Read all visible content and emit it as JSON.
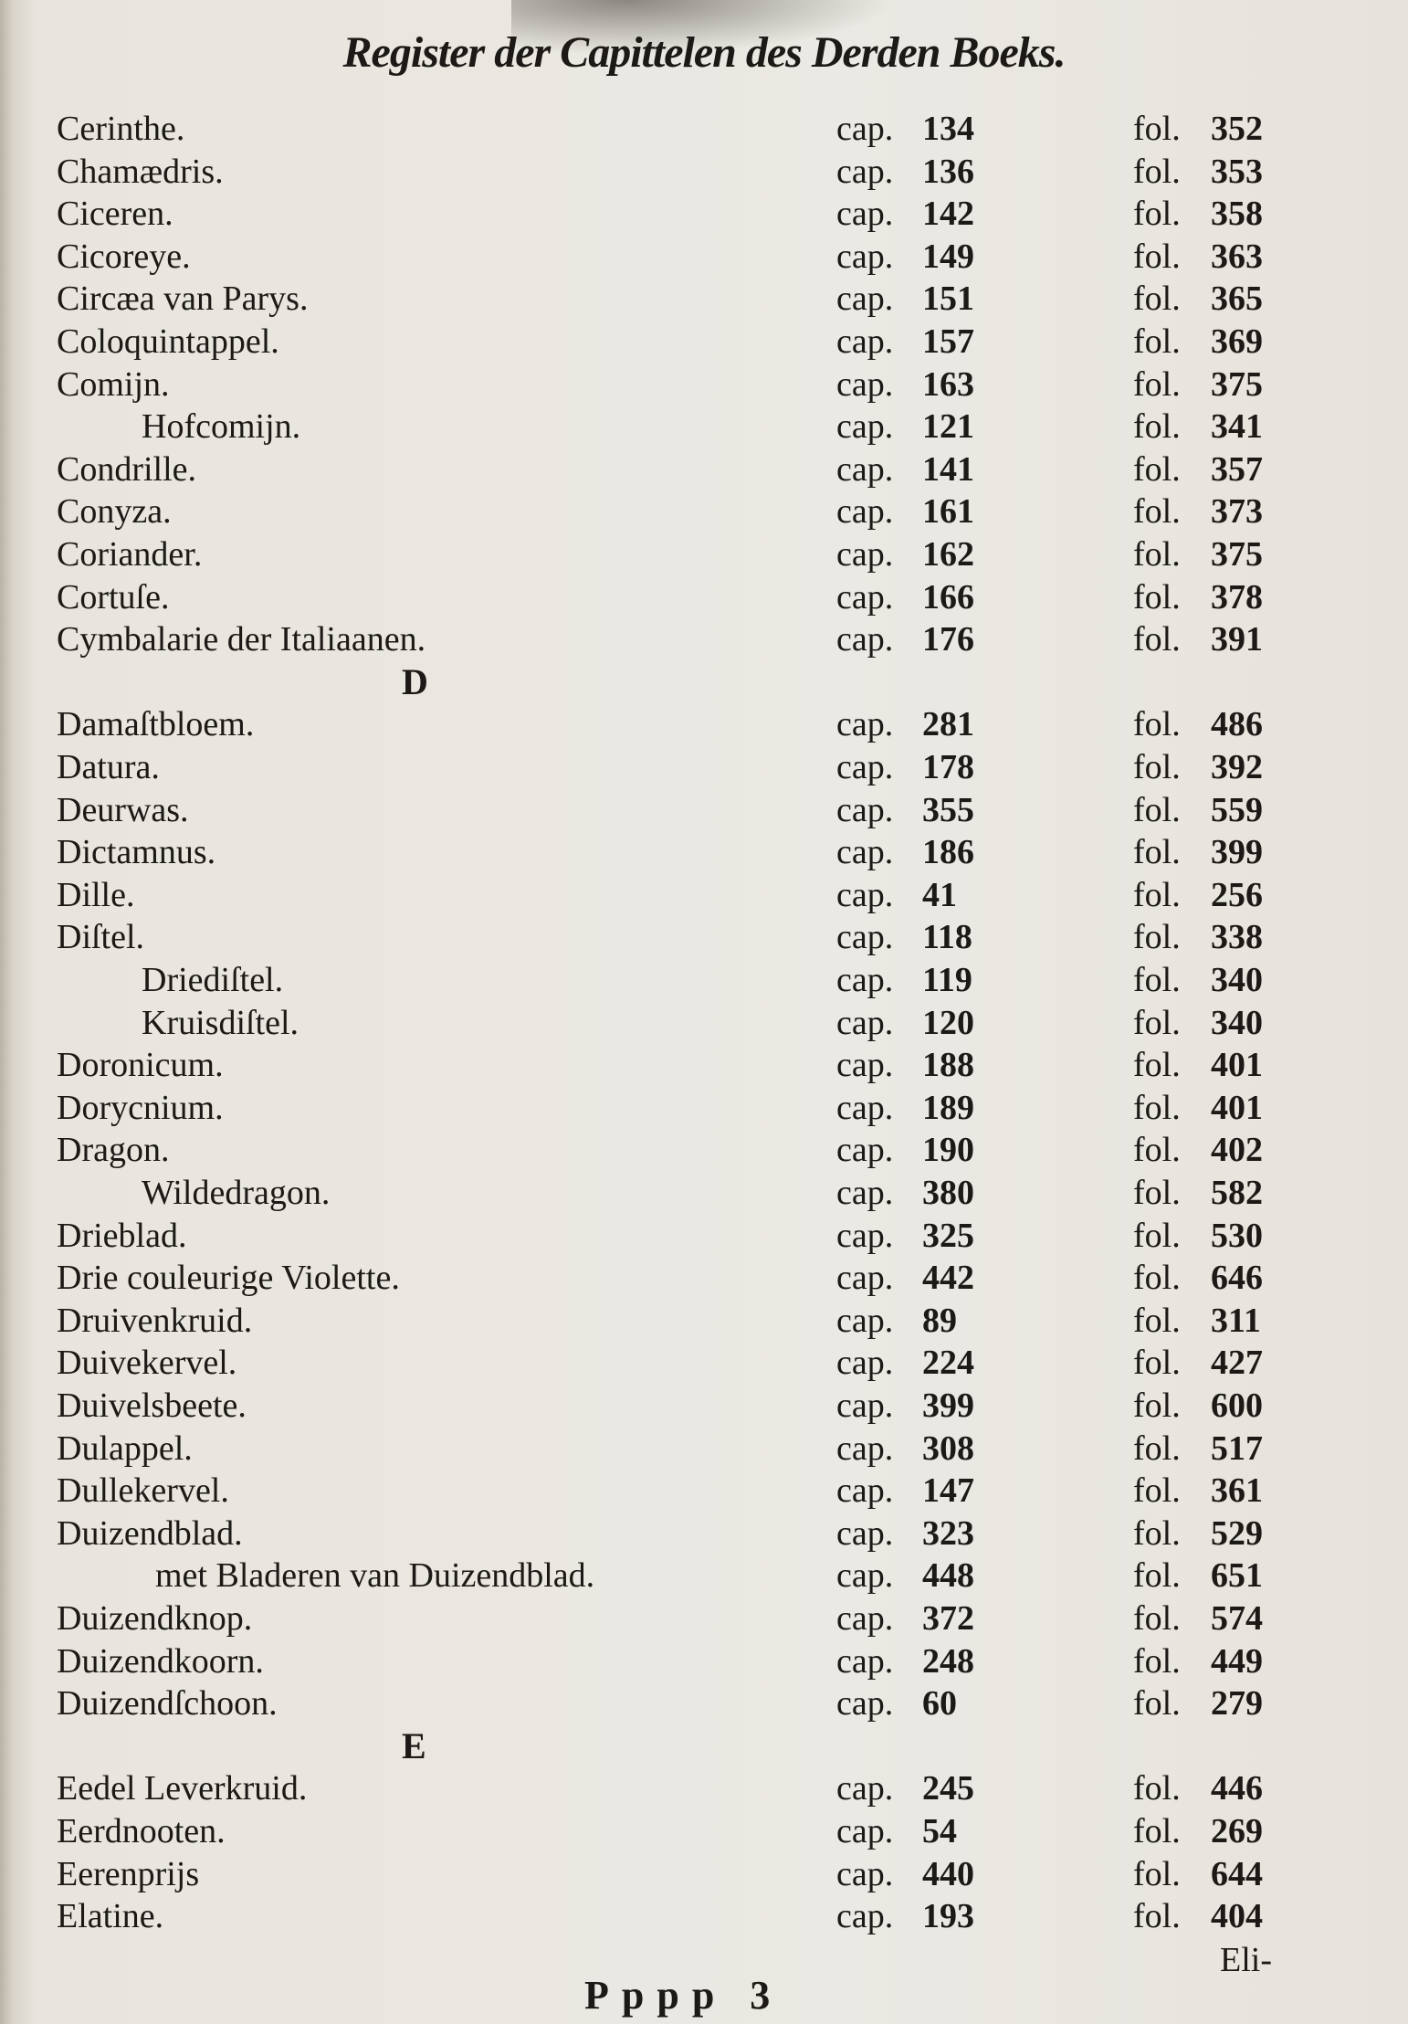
{
  "title": "Register der Capittelen des Derden Boeks.",
  "cap_label": "cap.",
  "fol_label": "fol.",
  "rows": [
    {
      "name": "Cerinthe.",
      "cap": "134",
      "fol": "352"
    },
    {
      "name": "Chamædris.",
      "cap": "136",
      "fol": "353"
    },
    {
      "name": "Ciceren.",
      "cap": "142",
      "fol": "358"
    },
    {
      "name": "Cicoreye.",
      "cap": "149",
      "fol": "363"
    },
    {
      "name": "Circæa van Parys.",
      "cap": "151",
      "fol": "365"
    },
    {
      "name": "Coloquintappel.",
      "cap": "157",
      "fol": "369"
    },
    {
      "name": "Comijn.",
      "cap": "163",
      "fol": "375"
    },
    {
      "name": "Hofcomijn.",
      "cap": "121",
      "fol": "341",
      "indent": 1
    },
    {
      "name": "Condrille.",
      "cap": "141",
      "fol": "357"
    },
    {
      "name": "Conyza.",
      "cap": "161",
      "fol": "373"
    },
    {
      "name": "Coriander.",
      "cap": "162",
      "fol": "375"
    },
    {
      "name": "Cortuſe.",
      "cap": "166",
      "fol": "378"
    },
    {
      "name": "Cymbalarie der Italiaanen.",
      "cap": "176",
      "fol": "391"
    },
    {
      "letter": "D"
    },
    {
      "name": "Damaſtbloem.",
      "cap": "281",
      "fol": "486"
    },
    {
      "name": "Datura.",
      "cap": "178",
      "fol": "392"
    },
    {
      "name": "Deurwas.",
      "cap": "355",
      "fol": "559"
    },
    {
      "name": "Dictamnus.",
      "cap": "186",
      "fol": "399"
    },
    {
      "name": "Dille.",
      "cap": "41",
      "fol": "256"
    },
    {
      "name": "Diſtel.",
      "cap": "118",
      "fol": "338"
    },
    {
      "name": "Driediſtel.",
      "cap": "119",
      "fol": "340",
      "indent": 1
    },
    {
      "name": "Kruisdiſtel.",
      "cap": "120",
      "fol": "340",
      "indent": 1
    },
    {
      "name": "Doronicum.",
      "cap": "188",
      "fol": "401"
    },
    {
      "name": "Dorycnium.",
      "cap": "189",
      "fol": "401"
    },
    {
      "name": "Dragon.",
      "cap": "190",
      "fol": "402"
    },
    {
      "name": "Wildedragon.",
      "cap": "380",
      "fol": "582",
      "indent": 1
    },
    {
      "name": "Drieblad.",
      "cap": "325",
      "fol": "530"
    },
    {
      "name": "Drie couleurige Violette.",
      "cap": "442",
      "fol": "646"
    },
    {
      "name": "Druivenkruid.",
      "cap": "89",
      "fol": "311"
    },
    {
      "name": "Duivekervel.",
      "cap": "224",
      "fol": "427"
    },
    {
      "name": "Duivelsbeete.",
      "cap": "399",
      "fol": "600"
    },
    {
      "name": "Dulappel.",
      "cap": "308",
      "fol": "517"
    },
    {
      "name": "Dullekervel.",
      "cap": "147",
      "fol": "361"
    },
    {
      "name": "Duizendblad.",
      "cap": "323",
      "fol": "529"
    },
    {
      "name": "met Bladeren van Duizendblad.",
      "cap": "448",
      "fol": "651",
      "indent": 2
    },
    {
      "name": "Duizendknop.",
      "cap": "372",
      "fol": "574"
    },
    {
      "name": "Duizendkoorn.",
      "cap": "248",
      "fol": "449"
    },
    {
      "name": "Duizendſchoon.",
      "cap": "60",
      "fol": "279"
    },
    {
      "letter": "E"
    },
    {
      "name": "Eedel Leverkruid.",
      "cap": "245",
      "fol": "446"
    },
    {
      "name": "Eerdnooten.",
      "cap": "54",
      "fol": "269"
    },
    {
      "name": "Eerenprijs",
      "cap": "440",
      "fol": "644"
    },
    {
      "name": "Elatine.",
      "cap": "193",
      "fol": "404"
    }
  ],
  "signature": "Pppp 3",
  "catchword": "Eli-"
}
